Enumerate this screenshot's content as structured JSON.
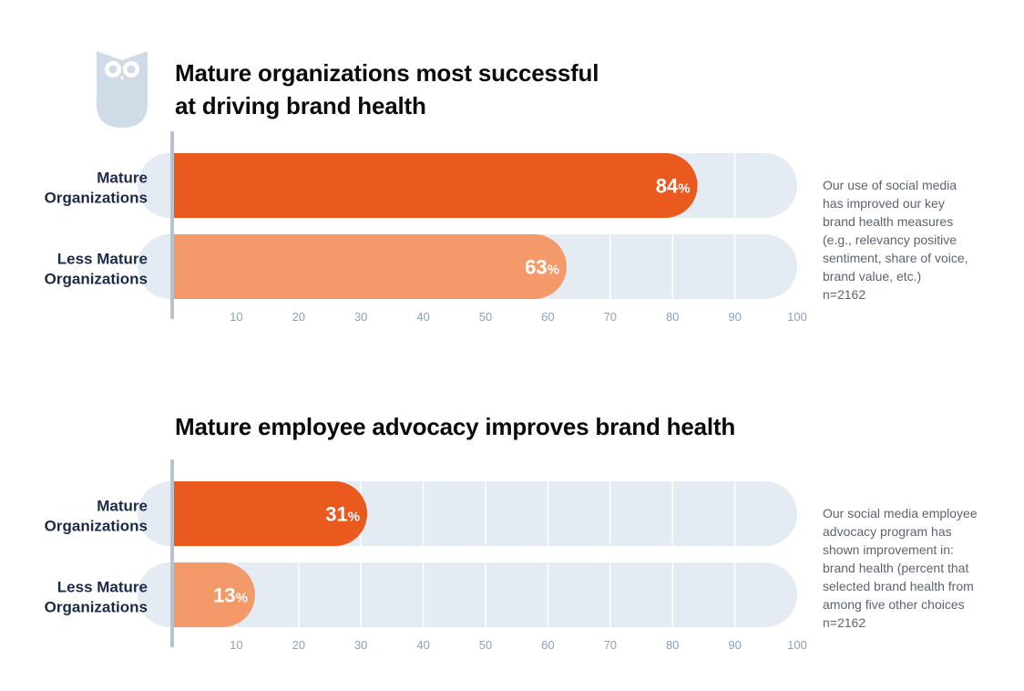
{
  "colors": {
    "mature": "#ea5a1e",
    "less_mature": "#f49a6a",
    "track": "#e5ebf2",
    "gridline": "#ffffff",
    "axis": "#b8c2d0",
    "logo": "#cfdbe7"
  },
  "logo_icon": "owl-logo-icon",
  "chart_data": [
    {
      "type": "bar",
      "orientation": "horizontal",
      "title": "Mature organizations most successful\nat driving brand health",
      "categories": [
        "Mature\nOrganizations",
        "Less Mature\nOrganizations"
      ],
      "values": [
        84,
        63
      ],
      "value_suffix": "%",
      "xlim": [
        0,
        100
      ],
      "xticks": [
        10,
        20,
        30,
        40,
        50,
        60,
        70,
        80,
        90,
        100
      ],
      "grid": true,
      "note_lines": [
        "Our use of social media",
        "has improved our key",
        "brand health measures",
        "(e.g., relevancy positive",
        "sentiment, share of voice,",
        "brand value, etc.)",
        "n=2162"
      ]
    },
    {
      "type": "bar",
      "orientation": "horizontal",
      "title": "Mature employee advocacy improves brand health",
      "categories": [
        "Mature\nOrganizations",
        "Less Mature\nOrganizations"
      ],
      "values": [
        31,
        13
      ],
      "value_suffix": "%",
      "xlim": [
        0,
        100
      ],
      "xticks": [
        10,
        20,
        30,
        40,
        50,
        60,
        70,
        80,
        90,
        100
      ],
      "grid": true,
      "note_lines": [
        "Our social media employee",
        "advocacy program has",
        "shown improvement in:",
        "brand health (percent that",
        "selected brand health from",
        "among five other choices",
        "n=2162"
      ]
    }
  ]
}
